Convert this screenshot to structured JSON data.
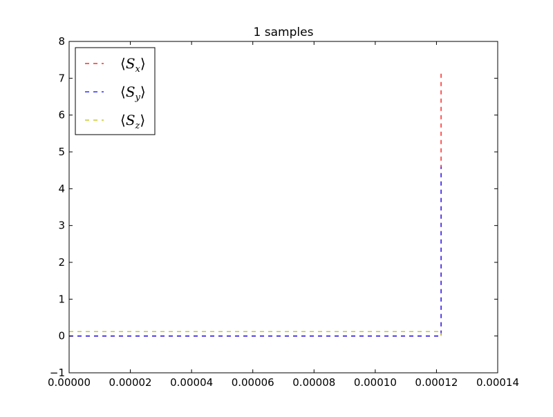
{
  "chart_data": {
    "type": "line",
    "title": "1 samples",
    "xlabel": "",
    "ylabel": "",
    "xlim": [
      0,
      0.00014
    ],
    "ylim": [
      -1,
      8
    ],
    "x_ticks": [
      0,
      2e-05,
      4e-05,
      6e-05,
      8e-05,
      0.0001,
      0.00012,
      0.00014
    ],
    "x_tick_labels": [
      "0.00000",
      "0.00002",
      "0.00004",
      "0.00006",
      "0.00008",
      "0.00010",
      "0.00012",
      "0.00014"
    ],
    "y_ticks": [
      -1,
      0,
      1,
      2,
      3,
      4,
      5,
      6,
      7,
      8
    ],
    "y_tick_labels": [
      "−1",
      "0",
      "1",
      "2",
      "3",
      "4",
      "5",
      "6",
      "7",
      "8"
    ],
    "grid": false,
    "legend_position": "upper-left",
    "series": [
      {
        "name": "⟨S_x⟩",
        "base": "S",
        "sub": "x",
        "color": "#ff0000",
        "linestyle": "dashed",
        "x": [
          0,
          0.0001215,
          0.0001215
        ],
        "y": [
          0,
          0,
          7.2
        ]
      },
      {
        "name": "⟨S_y⟩",
        "base": "S",
        "sub": "y",
        "color": "#0000ff",
        "linestyle": "dashed",
        "x": [
          0,
          0.0001215,
          0.0001215
        ],
        "y": [
          0,
          0,
          4.6
        ]
      },
      {
        "name": "⟨S_z⟩",
        "base": "S",
        "sub": "z",
        "color": "#bfbf00",
        "linestyle": "dashed",
        "x": [
          0,
          0.0001215,
          0.0001215
        ],
        "y": [
          0.12,
          0.12,
          0
        ]
      }
    ]
  }
}
